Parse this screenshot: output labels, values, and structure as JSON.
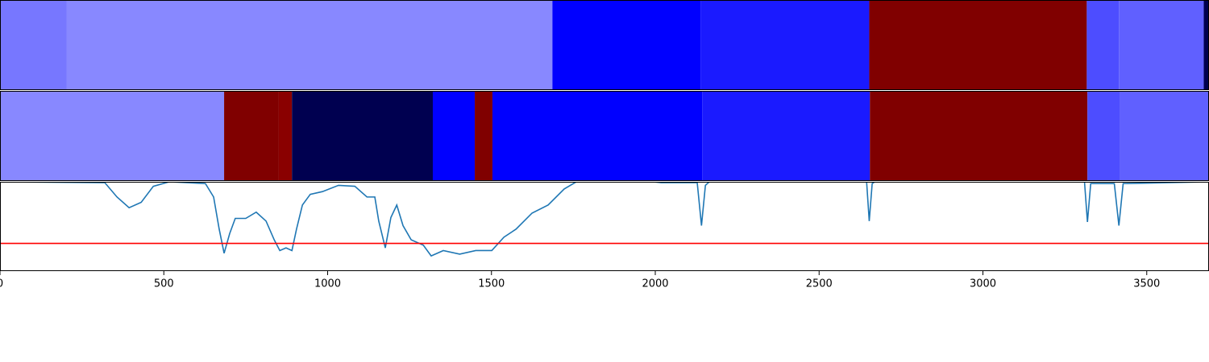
{
  "chart_data": [
    {
      "type": "heatmap",
      "xlim": [
        0,
        3690
      ],
      "bins": [
        0,
        204,
        1686,
        2138,
        2653,
        3317,
        3415,
        3674,
        3690
      ],
      "colors": [
        "#7777ff",
        "#8888ff",
        "#0000ff",
        "#1a1aff",
        "#800000",
        "#4d4dff",
        "#6060ff",
        "#000050"
      ]
    },
    {
      "type": "heatmap",
      "xlim": [
        0,
        3690
      ],
      "bins": [
        0,
        684,
        851,
        891,
        1321,
        1449,
        1503,
        2143,
        2655,
        3319,
        3418,
        3690
      ],
      "colors": [
        "#8888ff",
        "#800000",
        "#8a0000",
        "#000050",
        "#0000ff",
        "#800000",
        "#0000ff",
        "#1a1aff",
        "#800000",
        "#4d4dff",
        "#6060ff"
      ]
    },
    {
      "type": "line",
      "xlim": [
        0,
        3690
      ],
      "ylim": [
        0,
        1
      ],
      "xticks": [
        0,
        500,
        1000,
        1500,
        2000,
        2500,
        3000,
        3500
      ],
      "x": [
        0,
        320,
        357,
        394,
        431,
        468,
        517,
        627,
        652,
        669,
        684,
        701,
        718,
        750,
        782,
        812,
        837,
        854,
        873,
        891,
        905,
        923,
        947,
        984,
        1033,
        1083,
        1120,
        1144,
        1156,
        1176,
        1193,
        1211,
        1230,
        1255,
        1292,
        1316,
        1353,
        1403,
        1452,
        1501,
        1538,
        1575,
        1624,
        1673,
        1722,
        1759,
        1993,
        2018,
        2128,
        2141,
        2153,
        2165,
        2645,
        2653,
        2662,
        2670,
        3310,
        3319,
        3329,
        3401,
        3415,
        3428,
        3690
      ],
      "series": [
        {
          "color": "#1f77b4",
          "values": [
            1.0,
            0.99,
            0.83,
            0.71,
            0.77,
            0.95,
            1.0,
            0.98,
            0.83,
            0.47,
            0.2,
            0.42,
            0.59,
            0.59,
            0.66,
            0.56,
            0.35,
            0.23,
            0.26,
            0.23,
            0.47,
            0.74,
            0.86,
            0.89,
            0.96,
            0.95,
            0.83,
            0.83,
            0.56,
            0.26,
            0.6,
            0.74,
            0.51,
            0.35,
            0.29,
            0.17,
            0.23,
            0.19,
            0.23,
            0.23,
            0.38,
            0.47,
            0.65,
            0.74,
            0.92,
            1.0,
            1.0,
            0.99,
            0.99,
            0.51,
            0.96,
            1.0,
            1.0,
            0.56,
            0.98,
            1.0,
            1.0,
            0.55,
            0.98,
            0.98,
            0.51,
            0.98,
            1.0
          ]
        }
      ],
      "hline": {
        "value": 0.31,
        "color": "#ff0000"
      }
    }
  ]
}
